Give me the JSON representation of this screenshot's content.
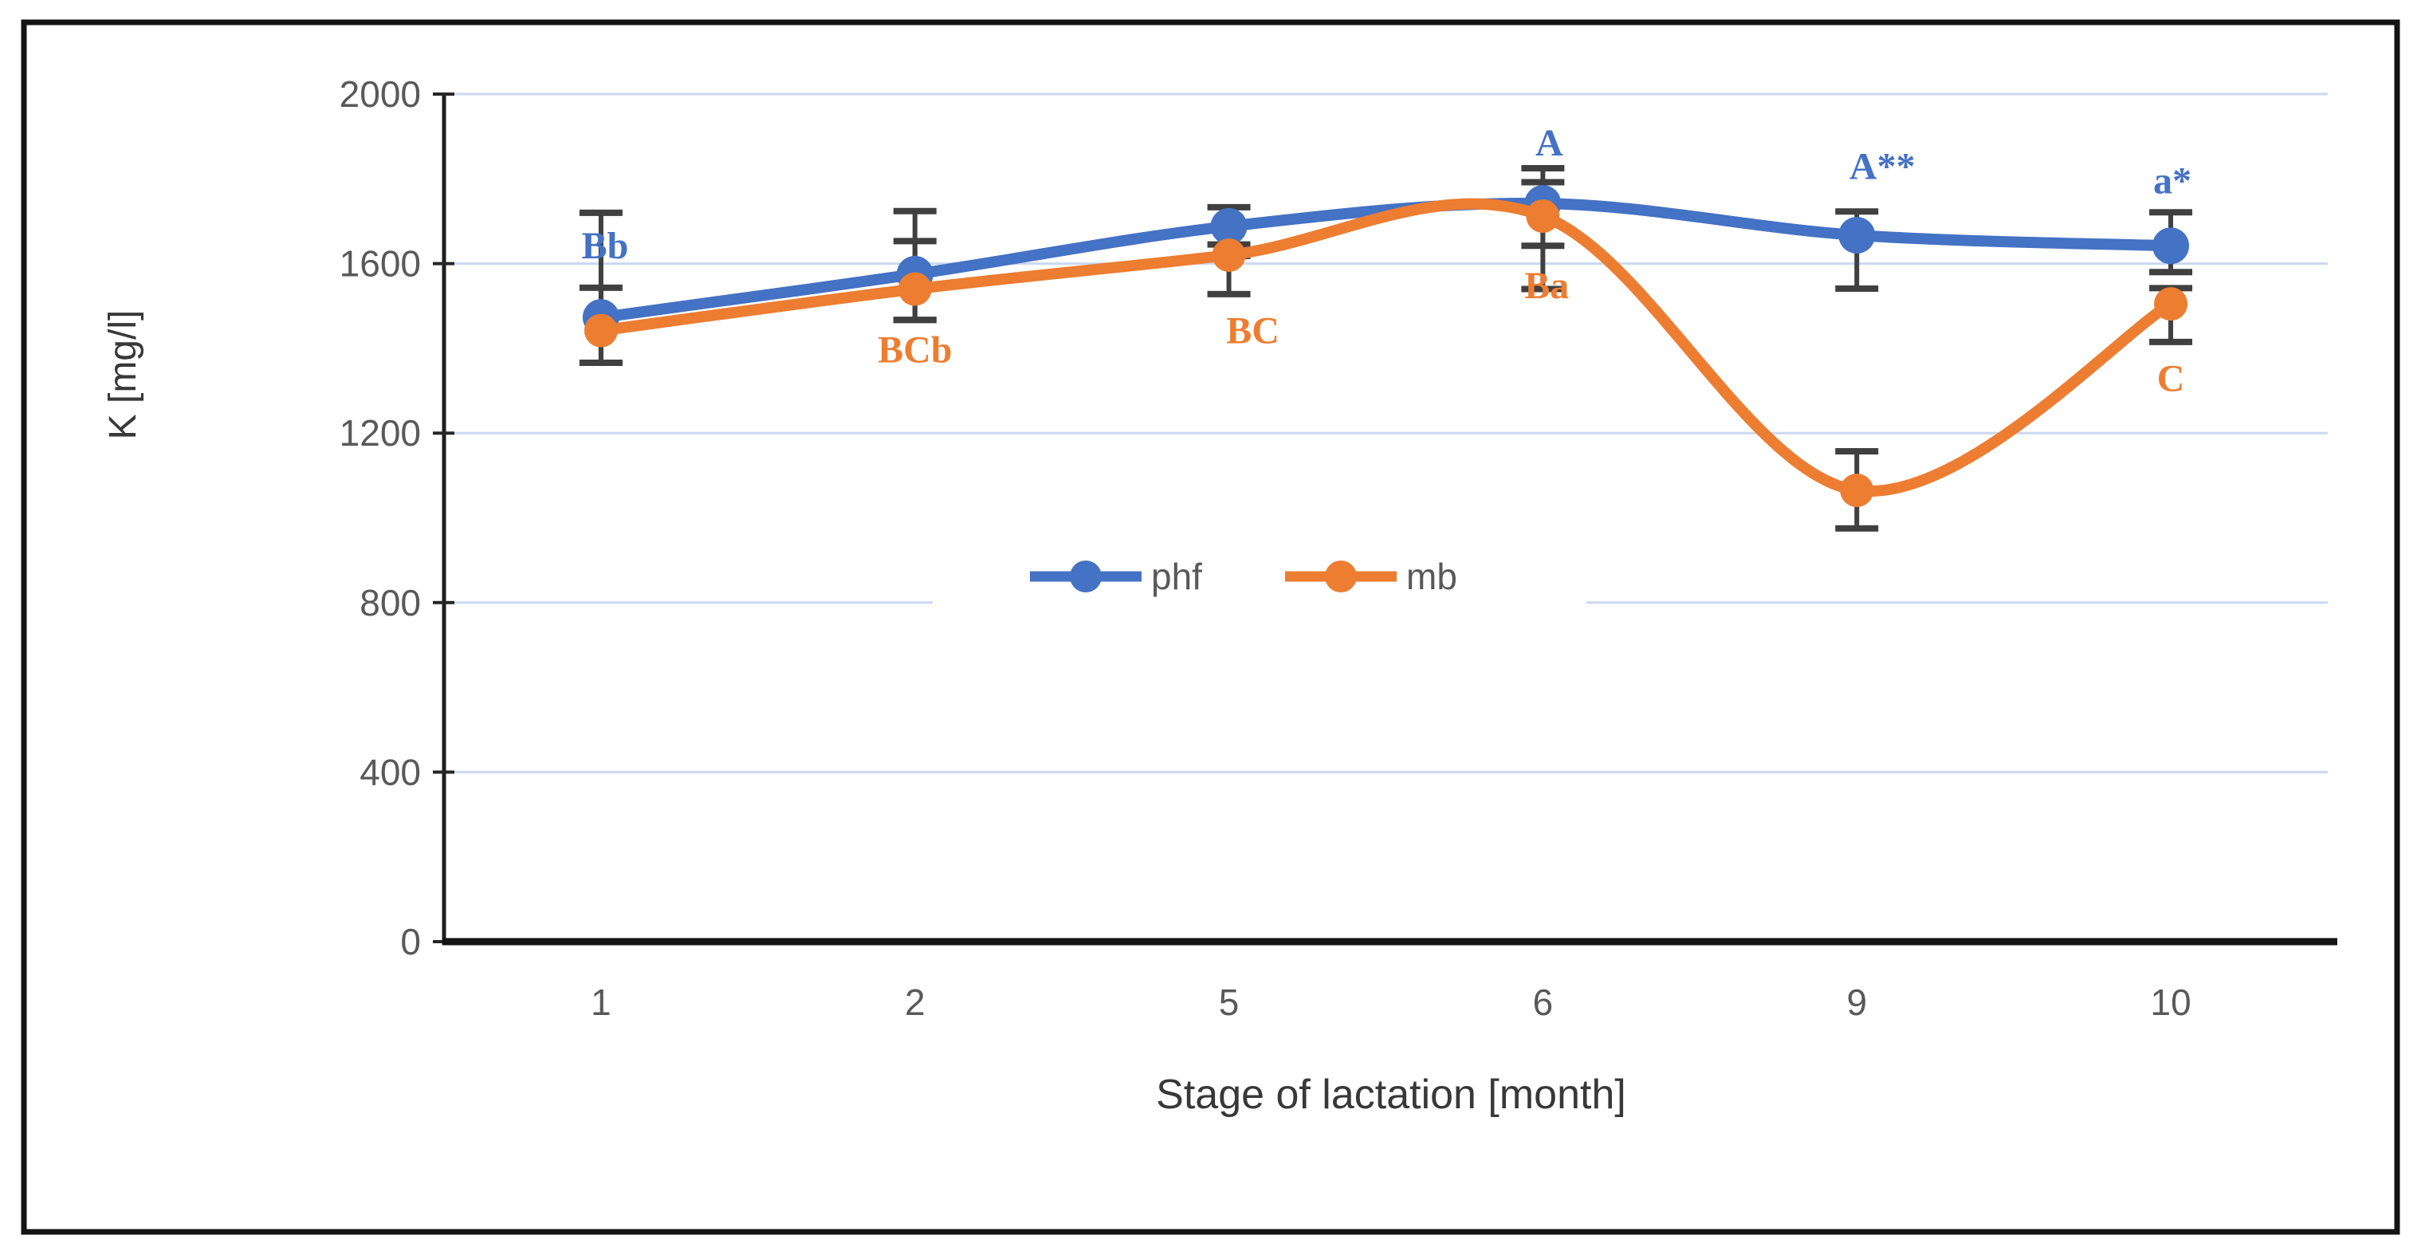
{
  "figure": {
    "background": "#ffffff",
    "border_color": "#141414"
  },
  "chart_data": {
    "type": "line",
    "title": "",
    "xlabel": "Stage of lactation [month]",
    "ylabel": "K [mg/l]",
    "categories": [
      "1",
      "2",
      "5",
      "6",
      "9",
      "10"
    ],
    "ylim": [
      0,
      2000
    ],
    "ytick_interval": 400,
    "ytick_labels": [
      "0",
      "400",
      "800",
      "1200",
      "1600",
      "2000"
    ],
    "grid": true,
    "grid_color": "#CBD8F1",
    "errorbar_color": "#404040",
    "tick_label_color": "#595959",
    "axis_title_color": "#383838",
    "legend_position": "center-overlay",
    "line_style": "smooth",
    "series": [
      {
        "name": "phf",
        "color": "#4472C4",
        "values": [
          1473,
          1575,
          1688,
          1742,
          1667,
          1642
        ],
        "err_plus": [
          247,
          149,
          45,
          83,
          56,
          79
        ],
        "err_minus": [
          107,
          108,
          70,
          100,
          126,
          62
        ]
      },
      {
        "name": "mb",
        "color": "#ED7D31",
        "values": [
          1442,
          1540,
          1620,
          1712,
          1065,
          1505
        ],
        "err_plus": [
          101,
          113,
          25,
          80,
          92,
          37
        ],
        "err_minus": [
          76,
          73,
          92,
          172,
          90,
          90
        ]
      }
    ],
    "annotations": [
      {
        "label": "Bb",
        "series": "phf",
        "category_index": 0,
        "value": 1644,
        "dx": 5
      },
      {
        "label": "BCb",
        "series": "mb",
        "category_index": 1,
        "value": 1399,
        "dx": 0
      },
      {
        "label": "BC",
        "series": "mb",
        "category_index": 2,
        "value": 1444,
        "dx": 30
      },
      {
        "label": "A",
        "series": "phf",
        "category_index": 3,
        "value": 1887,
        "dx": 8
      },
      {
        "label": "Ba",
        "series": "mb",
        "category_index": 3,
        "value": 1550,
        "dx": 5
      },
      {
        "label": "A**",
        "series": "phf",
        "category_index": 4,
        "value": 1832,
        "dx": 32
      },
      {
        "label": "a*",
        "series": "phf",
        "category_index": 5,
        "value": 1798,
        "dx": 2
      },
      {
        "label": "C",
        "series": "mb",
        "category_index": 5,
        "value": 1331,
        "dx": 0
      }
    ]
  }
}
